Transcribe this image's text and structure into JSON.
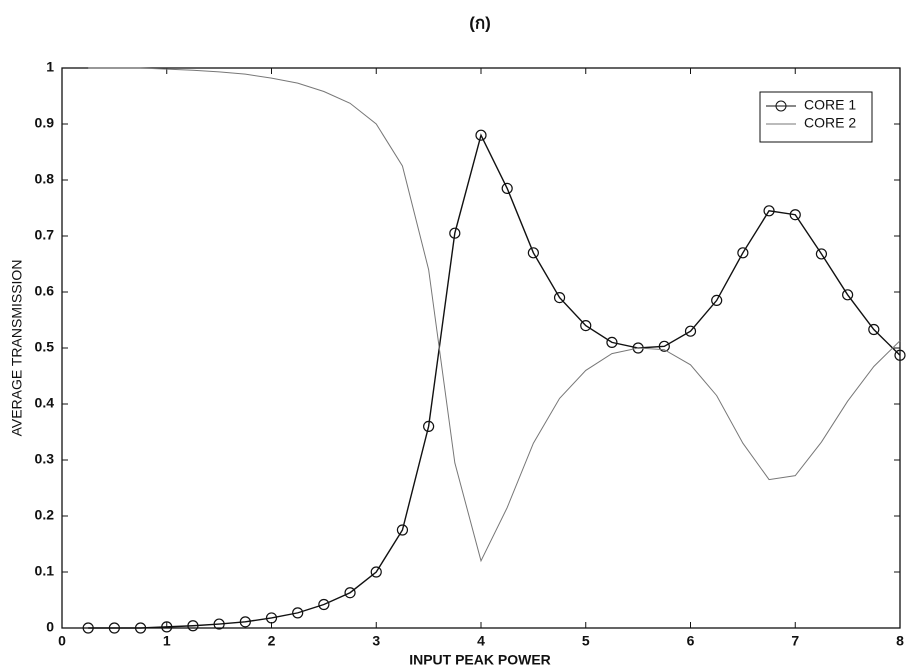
{
  "chart_data": {
    "type": "line",
    "title": "(ก)",
    "xlabel": "INPUT PEAK POWER",
    "ylabel": "AVERAGE TRANSMISSION",
    "x": [
      0.25,
      0.5,
      0.75,
      1,
      1.25,
      1.5,
      1.75,
      2,
      2.25,
      2.5,
      2.75,
      3,
      3.25,
      3.5,
      3.75,
      4,
      4.25,
      4.5,
      4.75,
      5,
      5.25,
      5.5,
      5.75,
      6,
      6.25,
      6.5,
      6.75,
      7,
      7.25,
      7.5,
      7.75,
      8
    ],
    "series": [
      {
        "name": "CORE 1",
        "color": "#111111",
        "marker": "circle",
        "values": [
          0,
          0,
          0,
          0.002,
          0.004,
          0.007,
          0.011,
          0.018,
          0.027,
          0.042,
          0.063,
          0.1,
          0.175,
          0.36,
          0.705,
          0.88,
          0.785,
          0.67,
          0.59,
          0.54,
          0.51,
          0.5,
          0.503,
          0.53,
          0.585,
          0.67,
          0.745,
          0.738,
          0.668,
          0.595,
          0.533,
          0.487
        ]
      },
      {
        "name": "CORE 2",
        "color": "#777777",
        "marker": "none",
        "values": [
          1,
          1,
          1,
          0.998,
          0.996,
          0.993,
          0.989,
          0.982,
          0.973,
          0.958,
          0.937,
          0.9,
          0.825,
          0.64,
          0.295,
          0.12,
          0.215,
          0.33,
          0.41,
          0.46,
          0.49,
          0.5,
          0.497,
          0.47,
          0.415,
          0.33,
          0.265,
          0.272,
          0.332,
          0.405,
          0.467,
          0.513
        ]
      }
    ],
    "xlim": [
      0,
      8
    ],
    "xticks": [
      0,
      1,
      2,
      3,
      4,
      5,
      6,
      7,
      8
    ],
    "ylim": [
      0,
      1
    ],
    "yticks": [
      0,
      0.1,
      0.2,
      0.3,
      0.4,
      0.5,
      0.6,
      0.7,
      0.8,
      0.9,
      1
    ],
    "legend": "top-right"
  }
}
